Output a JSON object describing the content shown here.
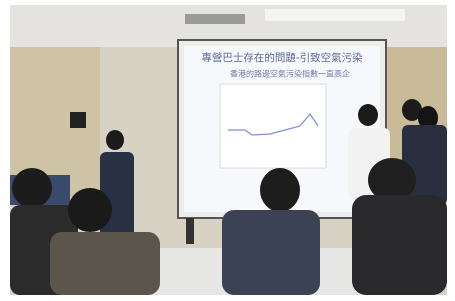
{
  "slide": {
    "title": "專營巴士存在的問題-引致空氣污染",
    "bullet": "香港的路邊空氣污染指數一直高企"
  }
}
